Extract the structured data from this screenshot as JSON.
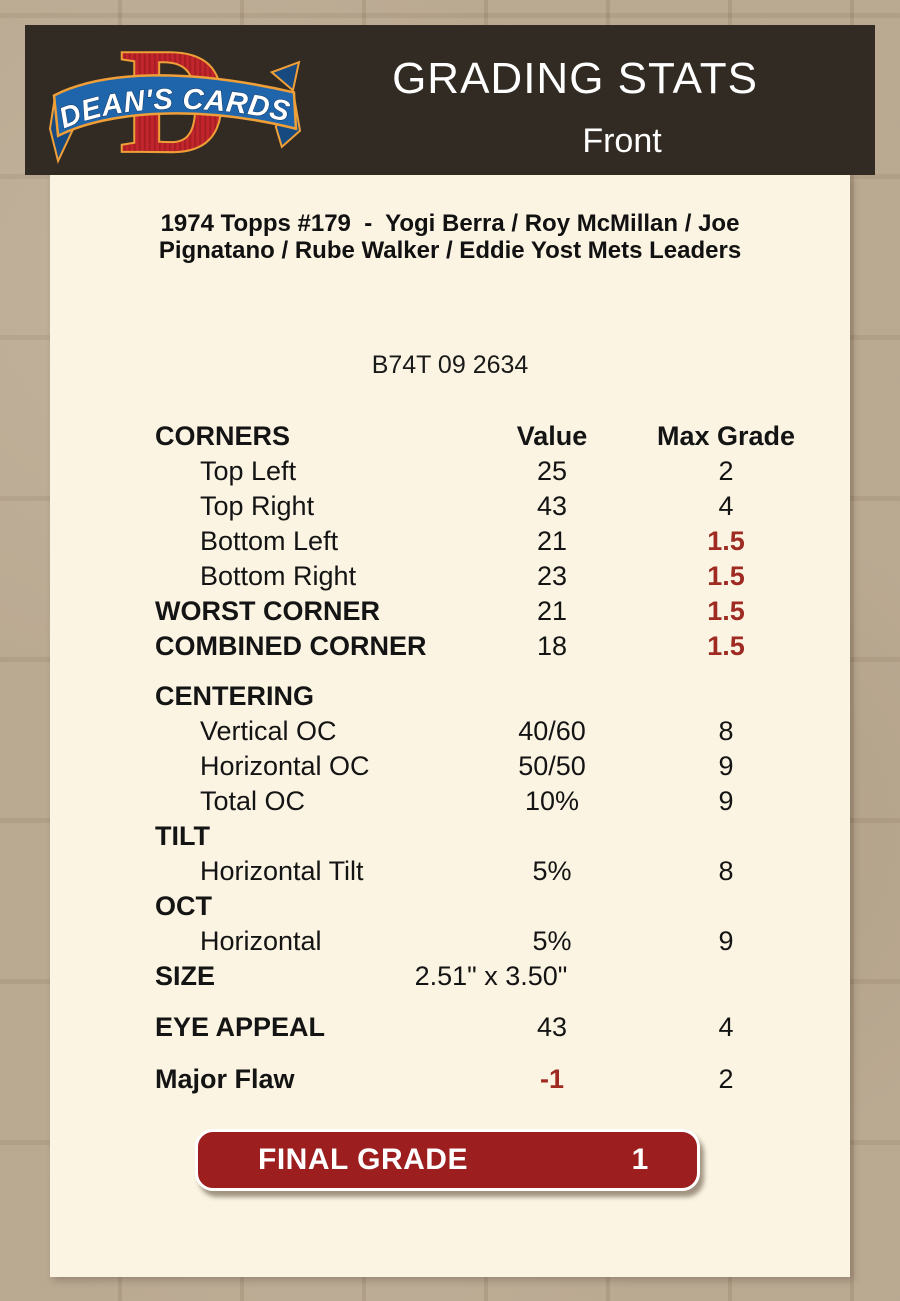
{
  "header": {
    "title": "GRADING STATS",
    "subtitle": "Front",
    "logo": {
      "letter": "D",
      "text": "DEAN'S CARDS",
      "red": "#c2252b",
      "stripe_red": "#a51e24",
      "blue": "#1e65ab",
      "dark_blue": "#164a80",
      "gold": "#ef9f38"
    },
    "bg": "#322b23"
  },
  "card": {
    "title_lines": [
      "1974 Topps #179  -  Yogi Berra / Roy McMillan / Joe",
      "Pignatano / Rube Walker / Eddie Yost Mets Leaders"
    ],
    "serial": "B74T 09 2634"
  },
  "table": {
    "columns": {
      "name": "CORNERS",
      "value": "Value",
      "grade": "Max Grade"
    },
    "rows": [
      {
        "label": "Top Left",
        "value": "25",
        "grade": "2",
        "style": "item"
      },
      {
        "label": "Top Right",
        "value": "43",
        "grade": "4",
        "style": "item"
      },
      {
        "label": "Bottom Left",
        "value": "21",
        "grade": "1.5",
        "style": "item",
        "grade_red": true
      },
      {
        "label": "Bottom Right",
        "value": "23",
        "grade": "1.5",
        "style": "item",
        "grade_red": true
      },
      {
        "label": "WORST CORNER",
        "value": "21",
        "grade": "1.5",
        "style": "section",
        "grade_red": true
      },
      {
        "label": "COMBINED CORNER",
        "value": "18",
        "grade": "1.5",
        "style": "section",
        "grade_red": true
      },
      {
        "label": "CENTERING",
        "value": "",
        "grade": "",
        "style": "section",
        "gap_before": 15
      },
      {
        "label": "Vertical OC",
        "value": "40/60",
        "grade": "8",
        "style": "item"
      },
      {
        "label": "Horizontal OC",
        "value": "50/50",
        "grade": "9",
        "style": "item"
      },
      {
        "label": "Total OC",
        "value": "10%",
        "grade": "9",
        "style": "item"
      },
      {
        "label": "TILT",
        "value": "",
        "grade": "",
        "style": "section"
      },
      {
        "label": "Horizontal Tilt",
        "value": "5%",
        "grade": "8",
        "style": "item"
      },
      {
        "label": "OCT",
        "value": "",
        "grade": "",
        "style": "section"
      },
      {
        "label": "Horizontal",
        "value": "5%",
        "grade": "9",
        "style": "item"
      },
      {
        "label": "SIZE",
        "value": "2.51\" x 3.50\"",
        "grade": "",
        "style": "section",
        "value_shift": true
      },
      {
        "label": "EYE APPEAL",
        "value": "43",
        "grade": "4",
        "style": "section",
        "gap_before": 16
      },
      {
        "label": "Major Flaw",
        "value": "-1",
        "grade": "2",
        "style": "section",
        "value_red": true,
        "gap_before": 17
      }
    ]
  },
  "final_grade": {
    "label": "FINAL GRADE",
    "value": "1",
    "bg": "#9c1e1e"
  },
  "colors": {
    "page_bg": "#b3a189",
    "panel_bg": "#fbf4e3",
    "header_bg": "#322b23",
    "text": "#141414",
    "accent_red": "#9e2a22"
  }
}
